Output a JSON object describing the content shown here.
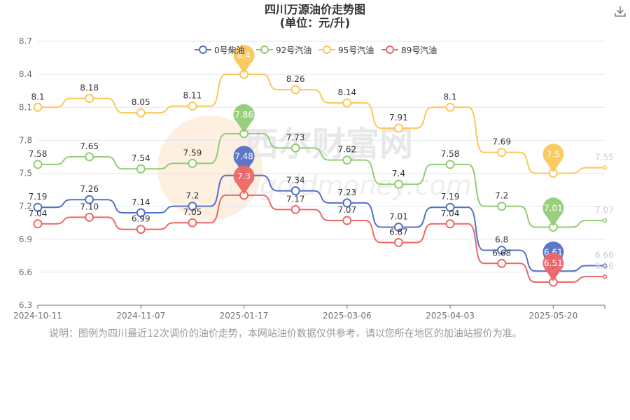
{
  "title": "四川万源油价走势图",
  "subtitle": "(单位：元/升)",
  "note": "说明：图例为四川最近12次调价的油价走势，本网站油价数据仅供参考，请以您所在地区的加油站报价为准。",
  "watermark": {
    "cn": "西尔财富网",
    "en": "cngoldmoney.com"
  },
  "toolbar": {
    "download_icon": "download-icon"
  },
  "colors": {
    "diesel0": "#5470c6",
    "gas92": "#91cc75",
    "gas95": "#fac858",
    "gas89": "#ee6666",
    "axis": "#6e7079",
    "grid": "#e0e6f1"
  },
  "chart_data": {
    "type": "line",
    "title": "四川万源油价走势图",
    "subtitle": "(单位：元/升)",
    "x_tick_labels": [
      "2024-10-11",
      "2024-11-07",
      "2025-01-17",
      "2025-03-06",
      "2025-04-03",
      "2025-05-20"
    ],
    "x_tick_index": [
      0,
      2,
      4,
      6,
      8,
      10
    ],
    "ylim": [
      6.3,
      8.7
    ],
    "y_ticks": [
      "6.3",
      "6.6",
      "6.9",
      "7.2",
      "7.5",
      "7.8",
      "8.1",
      "8.4",
      "8.7"
    ],
    "grid": true,
    "legend_position": "top-center",
    "series": [
      {
        "key": "diesel0",
        "name": "0号柴油",
        "values": [
          7.19,
          7.26,
          7.14,
          7.2,
          7.48,
          7.34,
          7.23,
          7.01,
          7.19,
          6.8,
          6.61,
          6.66
        ],
        "labels": [
          "7.19",
          "7.26",
          "7.14",
          "7.2",
          "7.48",
          "7.34",
          "7.23",
          "7.01",
          "7.19",
          "6.8",
          "6.61",
          "6.66"
        ],
        "max_index": 4,
        "min_index": 10
      },
      {
        "key": "gas92",
        "name": "92号汽油",
        "values": [
          7.58,
          7.65,
          7.54,
          7.59,
          7.86,
          7.73,
          7.62,
          7.4,
          7.58,
          7.2,
          7.01,
          7.07
        ],
        "labels": [
          "7.58",
          "7.65",
          "7.54",
          "7.59",
          "7.86",
          "7.73",
          "7.62",
          "7.4",
          "7.58",
          "7.2",
          "7.01",
          "7.07"
        ],
        "max_index": 4,
        "min_index": 10
      },
      {
        "key": "gas95",
        "name": "95号汽油",
        "values": [
          8.1,
          8.18,
          8.05,
          8.11,
          8.4,
          8.26,
          8.14,
          7.91,
          8.1,
          7.69,
          7.5,
          7.55
        ],
        "labels": [
          "8.1",
          "8.18",
          "8.05",
          "8.11",
          "8.4",
          "8.26",
          "8.14",
          "7.91",
          "8.1",
          "7.69",
          "7.5",
          "7.55"
        ],
        "max_index": 4,
        "min_index": 10
      },
      {
        "key": "gas89",
        "name": "89号汽油",
        "values": [
          7.04,
          7.1,
          6.99,
          7.05,
          7.3,
          7.17,
          7.07,
          6.87,
          7.04,
          6.68,
          6.51,
          6.56
        ],
        "labels": [
          "7.04",
          "7.10",
          "6.99",
          "7.05",
          "7.3",
          "7.17",
          "7.07",
          "6.87",
          "7.04",
          "6.68",
          "6.51",
          "6.56"
        ],
        "max_index": 4,
        "min_index": 10
      }
    ]
  }
}
